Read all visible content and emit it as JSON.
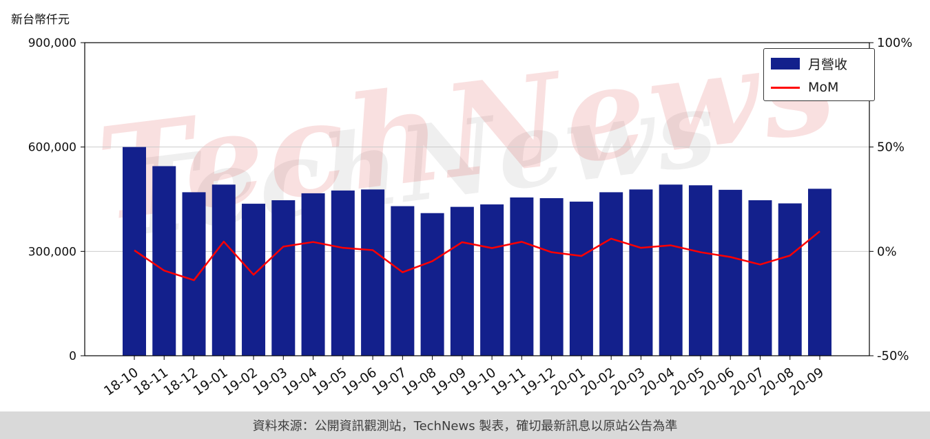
{
  "page": {
    "axis_label_left": "新台幣仟元",
    "watermark": "TechNews",
    "footer_text": "資料來源：公開資訊觀測站，TechNews 製表，確切最新訊息以原站公告為準"
  },
  "legend": {
    "series1": "月營收",
    "series2": "MoM"
  },
  "chart_data": {
    "type": "bar",
    "title": "",
    "categories": [
      "18-10",
      "18-11",
      "18-12",
      "19-01",
      "19-02",
      "19-03",
      "19-04",
      "19-05",
      "19-06",
      "19-07",
      "19-08",
      "19-09",
      "19-10",
      "19-11",
      "19-12",
      "20-01",
      "20-02",
      "20-03",
      "20-04",
      "20-05",
      "20-06",
      "20-07",
      "20-08",
      "20-09"
    ],
    "series": [
      {
        "name": "月營收",
        "type": "bar",
        "axis": "left",
        "color": "#13208c",
        "values": [
          600000,
          545000,
          470000,
          492000,
          437000,
          447000,
          467000,
          475000,
          478000,
          430000,
          410000,
          428000,
          435000,
          455000,
          453000,
          443000,
          470000,
          478000,
          492000,
          490000,
          477000,
          447000,
          438000,
          480000
        ]
      },
      {
        "name": "MoM",
        "type": "line",
        "axis": "right",
        "color": "#ff0000",
        "values": [
          0.5,
          -9.2,
          -13.8,
          4.7,
          -11.2,
          2.3,
          4.5,
          1.7,
          0.6,
          -10.0,
          -4.7,
          4.4,
          1.6,
          4.6,
          -0.4,
          -2.2,
          6.1,
          1.7,
          2.9,
          -0.4,
          -2.7,
          -6.3,
          -2.0,
          9.6
        ]
      }
    ],
    "left_axis": {
      "label": "新台幣仟元",
      "range": [
        0,
        900000
      ],
      "ticks": [
        0,
        300000,
        600000,
        900000
      ],
      "tick_labels": [
        "0",
        "300,000",
        "600,000",
        "900,000"
      ]
    },
    "right_axis": {
      "range": [
        -50,
        100
      ],
      "ticks": [
        -50,
        0,
        50,
        100
      ],
      "tick_labels": [
        "-50%",
        "0%",
        "50%",
        "100%"
      ]
    },
    "grid": true,
    "grid_color": "#cccccc",
    "legend_position": "top-right"
  }
}
